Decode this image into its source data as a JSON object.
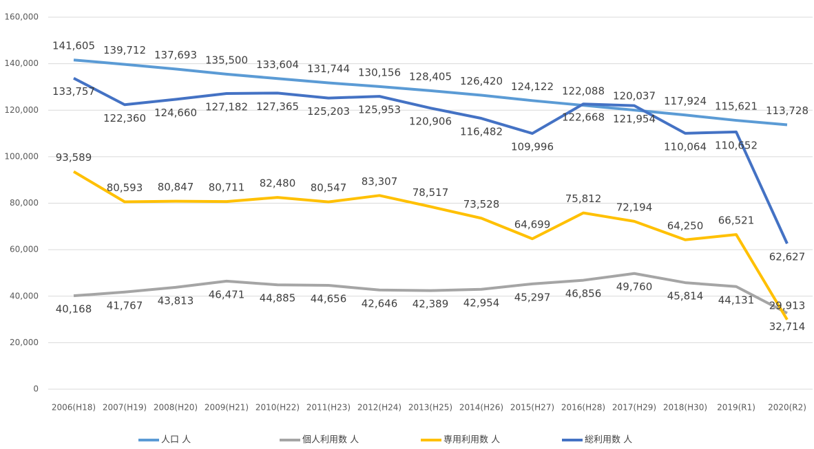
{
  "chart_data": {
    "type": "line",
    "categories": [
      "2006(H18)",
      "2007(H19)",
      "2008(H20)",
      "2009(H21)",
      "2010(H22)",
      "2011(H23)",
      "2012(H24)",
      "2013(H25)",
      "2014(H26)",
      "2015(H27)",
      "2016(H28)",
      "2017(H29)",
      "2018(H30)",
      "2019(R1)",
      "2020(R2)"
    ],
    "series": [
      {
        "name": "人口 人",
        "color": "#5b9bd5",
        "values": [
          141605,
          139712,
          137693,
          135500,
          133604,
          131744,
          130156,
          128405,
          126420,
          124122,
          122088,
          120037,
          117924,
          115621,
          113728
        ],
        "value_labels": [
          "141,605",
          "139,712",
          "137,693",
          "135,500",
          "133,604",
          "131,744",
          "130,156",
          "128,405",
          "126,420",
          "124,122",
          "122,088",
          "120,037",
          "117,924",
          "115,621",
          "113,728"
        ]
      },
      {
        "name": "個人利用数 人",
        "color": "#a5a5a5",
        "values": [
          40168,
          41767,
          43813,
          46471,
          44885,
          44656,
          42646,
          42389,
          42954,
          45297,
          46856,
          49760,
          45814,
          44131,
          32714
        ],
        "value_labels": [
          "40,168",
          "41,767",
          "43,813",
          "46,471",
          "44,885",
          "44,656",
          "42,646",
          "42,389",
          "42,954",
          "45,297",
          "46,856",
          "49,760",
          "45,814",
          "44,131",
          "32,714"
        ]
      },
      {
        "name": "専用利用数 人",
        "color": "#ffc000",
        "values": [
          93589,
          80593,
          80847,
          80711,
          82480,
          80547,
          83307,
          78517,
          73528,
          64699,
          75812,
          72194,
          64250,
          66521,
          29913
        ],
        "value_labels": [
          "93,589",
          "80,593",
          "80,847",
          "80,711",
          "82,480",
          "80,547",
          "83,307",
          "78,517",
          "73,528",
          "64,699",
          "75,812",
          "72,194",
          "64,250",
          "66,521",
          "29,913"
        ]
      },
      {
        "name": "総利用数 人",
        "color": "#4472c4",
        "values": [
          133757,
          122360,
          124660,
          127182,
          127365,
          125203,
          125953,
          120906,
          116482,
          109996,
          122668,
          121954,
          110064,
          110652,
          62627
        ],
        "value_labels": [
          "133,757",
          "122,360",
          "124,660",
          "127,182",
          "127,365",
          "125,203",
          "125,953",
          "120,906",
          "116,482",
          "109,996",
          "122,668",
          "121,954",
          "110,064",
          "110,652",
          "62,627"
        ]
      }
    ],
    "ylim": [
      0,
      160000
    ],
    "yticks": [
      0,
      {
        "value": 20000,
        "label": "20,000"
      },
      {
        "value": 40000,
        "label": "40,000"
      },
      {
        "value": 60000,
        "label": "60,000"
      },
      {
        "value": 80000,
        "label": "80,000"
      },
      {
        "value": 100000,
        "label": "100,000"
      },
      {
        "value": 120000,
        "label": "120,000"
      },
      {
        "value": 140000,
        "label": "140,000"
      },
      {
        "value": 160000,
        "label": "160,000"
      }
    ],
    "grid": true,
    "legend": "bottom"
  }
}
